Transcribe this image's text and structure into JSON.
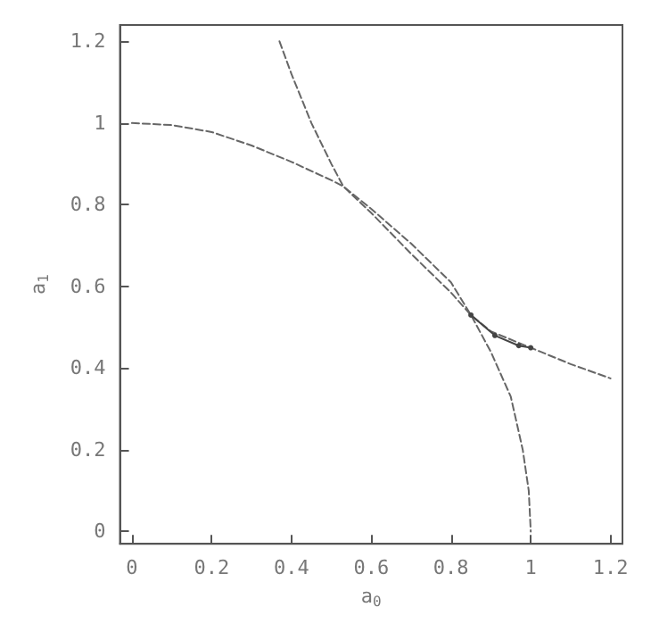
{
  "chart_data": {
    "type": "line",
    "xlabel": "a$_{0}$",
    "ylabel": "a$_{1}$",
    "xlim": [
      -0.03,
      1.23
    ],
    "ylim": [
      -0.03,
      1.24
    ],
    "xticks": [
      0,
      0.2,
      0.4,
      0.6,
      0.8,
      1,
      1.2
    ],
    "yticks": [
      0,
      0.2,
      0.4,
      0.6,
      0.8,
      1,
      1.2
    ],
    "series": [
      {
        "color": "#666666",
        "line_style": "dashed",
        "marker": "none",
        "x": [
          0,
          0.1,
          0.2,
          0.3,
          0.4,
          0.5,
          0.53,
          0.6,
          0.7,
          0.8,
          0.85,
          0.9,
          1.0,
          1.1,
          1.2
        ],
        "values": [
          1,
          0.995,
          0.978,
          0.945,
          0.905,
          0.86,
          0.845,
          0.78,
          0.68,
          0.585,
          0.53,
          0.49,
          0.45,
          0.41,
          0.375
        ]
      },
      {
        "color": "#666666",
        "line_style": "dashed",
        "marker": "none",
        "x": [
          0.37,
          0.4,
          0.45,
          0.5,
          0.53,
          0.6,
          0.7,
          0.8,
          0.85,
          0.9,
          0.95,
          0.98,
          0.995,
          1.0
        ],
        "values": [
          1.2,
          1.12,
          1.0,
          0.9,
          0.845,
          0.79,
          0.705,
          0.61,
          0.53,
          0.44,
          0.33,
          0.2,
          0.1,
          0
        ]
      },
      {
        "color": "#444444",
        "line_style": "solid",
        "marker": "circle",
        "x": [
          0.85,
          0.91,
          0.97,
          1.0
        ],
        "values": [
          0.53,
          0.48,
          0.455,
          0.45
        ]
      }
    ]
  }
}
